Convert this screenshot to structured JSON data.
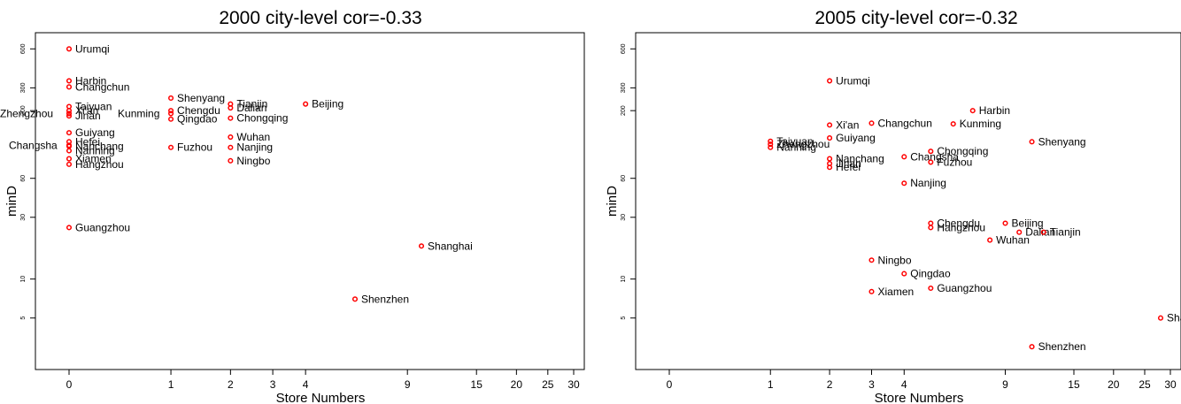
{
  "chart_data": [
    {
      "type": "scatter",
      "title": "2000 city-level cor=-0.33",
      "xlabel": "Store Numbers",
      "ylabel": "minD",
      "x_scale": "log(x+1)",
      "y_scale": "log",
      "xticks": [
        0,
        1,
        2,
        3,
        4,
        9,
        15,
        20,
        25,
        30
      ],
      "yticks": [
        5,
        10,
        30,
        60,
        200,
        300,
        600
      ],
      "xlim": [
        0,
        30
      ],
      "grid": false,
      "legend": "none",
      "points": [
        {
          "label": "Urumqi",
          "x": 0,
          "y": 600
        },
        {
          "label": "Harbin",
          "x": 0,
          "y": 340
        },
        {
          "label": "Changchun",
          "x": 0,
          "y": 305
        },
        {
          "label": "Taiyuan",
          "x": 0,
          "y": 215
        },
        {
          "label": "Xi'an",
          "x": 0,
          "y": 200
        },
        {
          "label": "Zhengzhou",
          "x": 0,
          "y": 190
        },
        {
          "label": "Jinan",
          "x": 0,
          "y": 182
        },
        {
          "label": "Guiyang",
          "x": 0,
          "y": 135
        },
        {
          "label": "Hefei",
          "x": 0,
          "y": 115
        },
        {
          "label": "Changsha",
          "x": 0,
          "y": 108
        },
        {
          "label": "Nanchang",
          "x": 0,
          "y": 106
        },
        {
          "label": "Nanning",
          "x": 0,
          "y": 98
        },
        {
          "label": "Xiamen",
          "x": 0,
          "y": 85
        },
        {
          "label": "Hangzhou",
          "x": 0,
          "y": 77
        },
        {
          "label": "Guangzhou",
          "x": 0,
          "y": 25
        },
        {
          "label": "Shenyang",
          "x": 1,
          "y": 250
        },
        {
          "label": "Kunming",
          "x": 1,
          "y": 190
        },
        {
          "label": "Chengdu",
          "x": 1,
          "y": 200
        },
        {
          "label": "Qingdao",
          "x": 1,
          "y": 172
        },
        {
          "label": "Fuzhou",
          "x": 1,
          "y": 104
        },
        {
          "label": "Tianjin",
          "x": 2,
          "y": 225
        },
        {
          "label": "Dalian",
          "x": 2,
          "y": 210
        },
        {
          "label": "Chongqing",
          "x": 2,
          "y": 175
        },
        {
          "label": "Wuhan",
          "x": 2,
          "y": 125
        },
        {
          "label": "Nanjing",
          "x": 2,
          "y": 104
        },
        {
          "label": "Ningbo",
          "x": 2,
          "y": 82
        },
        {
          "label": "Beijing",
          "x": 4,
          "y": 225
        },
        {
          "label": "Shenzhen",
          "x": 6,
          "y": 7
        },
        {
          "label": "Shanghai",
          "x": 10,
          "y": 18
        }
      ]
    },
    {
      "type": "scatter",
      "title": "2005 city-level cor=-0.32",
      "xlabel": "Store Numbers",
      "ylabel": "minD",
      "x_scale": "log(x+1)",
      "y_scale": "log",
      "xticks": [
        0,
        1,
        2,
        3,
        4,
        9,
        15,
        20,
        25,
        30
      ],
      "yticks": [
        5,
        10,
        30,
        60,
        200,
        300,
        600
      ],
      "xlim": [
        0,
        30
      ],
      "grid": false,
      "legend": "none",
      "points": [
        {
          "label": "Urumqi",
          "x": 2,
          "y": 340
        },
        {
          "label": "Harbin",
          "x": 7,
          "y": 200
        },
        {
          "label": "Changchun",
          "x": 3,
          "y": 160
        },
        {
          "label": "Kunming",
          "x": 6,
          "y": 158
        },
        {
          "label": "Xi'an",
          "x": 2,
          "y": 155
        },
        {
          "label": "Guiyang",
          "x": 2,
          "y": 123
        },
        {
          "label": "Taiyuan",
          "x": 1,
          "y": 116
        },
        {
          "label": "Zhengzhou",
          "x": 1,
          "y": 110
        },
        {
          "label": "Nanning",
          "x": 1,
          "y": 104
        },
        {
          "label": "Shenyang",
          "x": 11,
          "y": 115
        },
        {
          "label": "Chongqing",
          "x": 5,
          "y": 97
        },
        {
          "label": "Changsha",
          "x": 4,
          "y": 88
        },
        {
          "label": "Fuzhou",
          "x": 5,
          "y": 80
        },
        {
          "label": "Nanchang",
          "x": 2,
          "y": 85
        },
        {
          "label": "Jinan",
          "x": 2,
          "y": 78
        },
        {
          "label": "Hefei",
          "x": 2,
          "y": 73
        },
        {
          "label": "Nanjing",
          "x": 4,
          "y": 55
        },
        {
          "label": "Chengdu",
          "x": 5,
          "y": 27
        },
        {
          "label": "Hangzhou",
          "x": 5,
          "y": 25
        },
        {
          "label": "Beijing",
          "x": 9,
          "y": 27
        },
        {
          "label": "Dalian",
          "x": 10,
          "y": 23
        },
        {
          "label": "Tianjin",
          "x": 12,
          "y": 23
        },
        {
          "label": "Wuhan",
          "x": 8,
          "y": 20
        },
        {
          "label": "Ningbo",
          "x": 3,
          "y": 14
        },
        {
          "label": "Qingdao",
          "x": 4,
          "y": 11
        },
        {
          "label": "Xiamen",
          "x": 3,
          "y": 8
        },
        {
          "label": "Guangzhou",
          "x": 5,
          "y": 8.5
        },
        {
          "label": "Shanghai",
          "x": 28,
          "y": 5
        },
        {
          "label": "Shenzhen",
          "x": 11,
          "y": 3
        }
      ]
    }
  ]
}
